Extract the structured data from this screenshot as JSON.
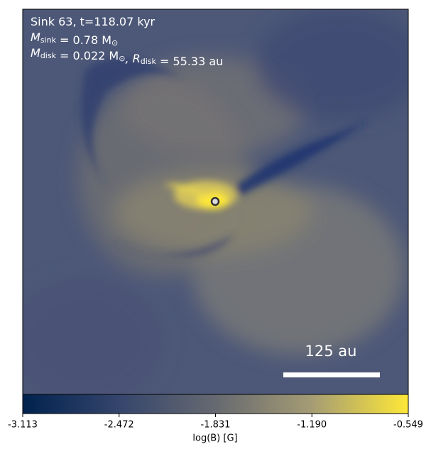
{
  "chart_data": {
    "type": "image",
    "annotations": [
      [
        {
          "text": "Sink 63, t=118.07 kyr"
        }
      ],
      [
        {
          "text": "M"
        },
        {
          "sub": "sink"
        },
        {
          "text": " = 0.78 M"
        },
        {
          "sub": "⊙"
        }
      ],
      [
        {
          "text": "M"
        },
        {
          "sub": "disk"
        },
        {
          "text": " = 0.022 M"
        },
        {
          "sub": "⊙"
        },
        {
          "text": ", R"
        },
        {
          "sub": "disk"
        },
        {
          "text": " = 55.33 au"
        }
      ]
    ],
    "scale_bar": "125 au",
    "colorbar": {
      "label": "log(B) [G]",
      "lim": [
        -3.113,
        -0.549
      ],
      "ticks": [
        -3.113,
        -2.472,
        -1.831,
        {
          "value": -1.19,
          "label": "-1.190"
        },
        -0.549
      ],
      "colors": [
        "#00224e",
        "#35456c",
        "#666970",
        "#a59c74",
        "#fee838"
      ]
    }
  }
}
